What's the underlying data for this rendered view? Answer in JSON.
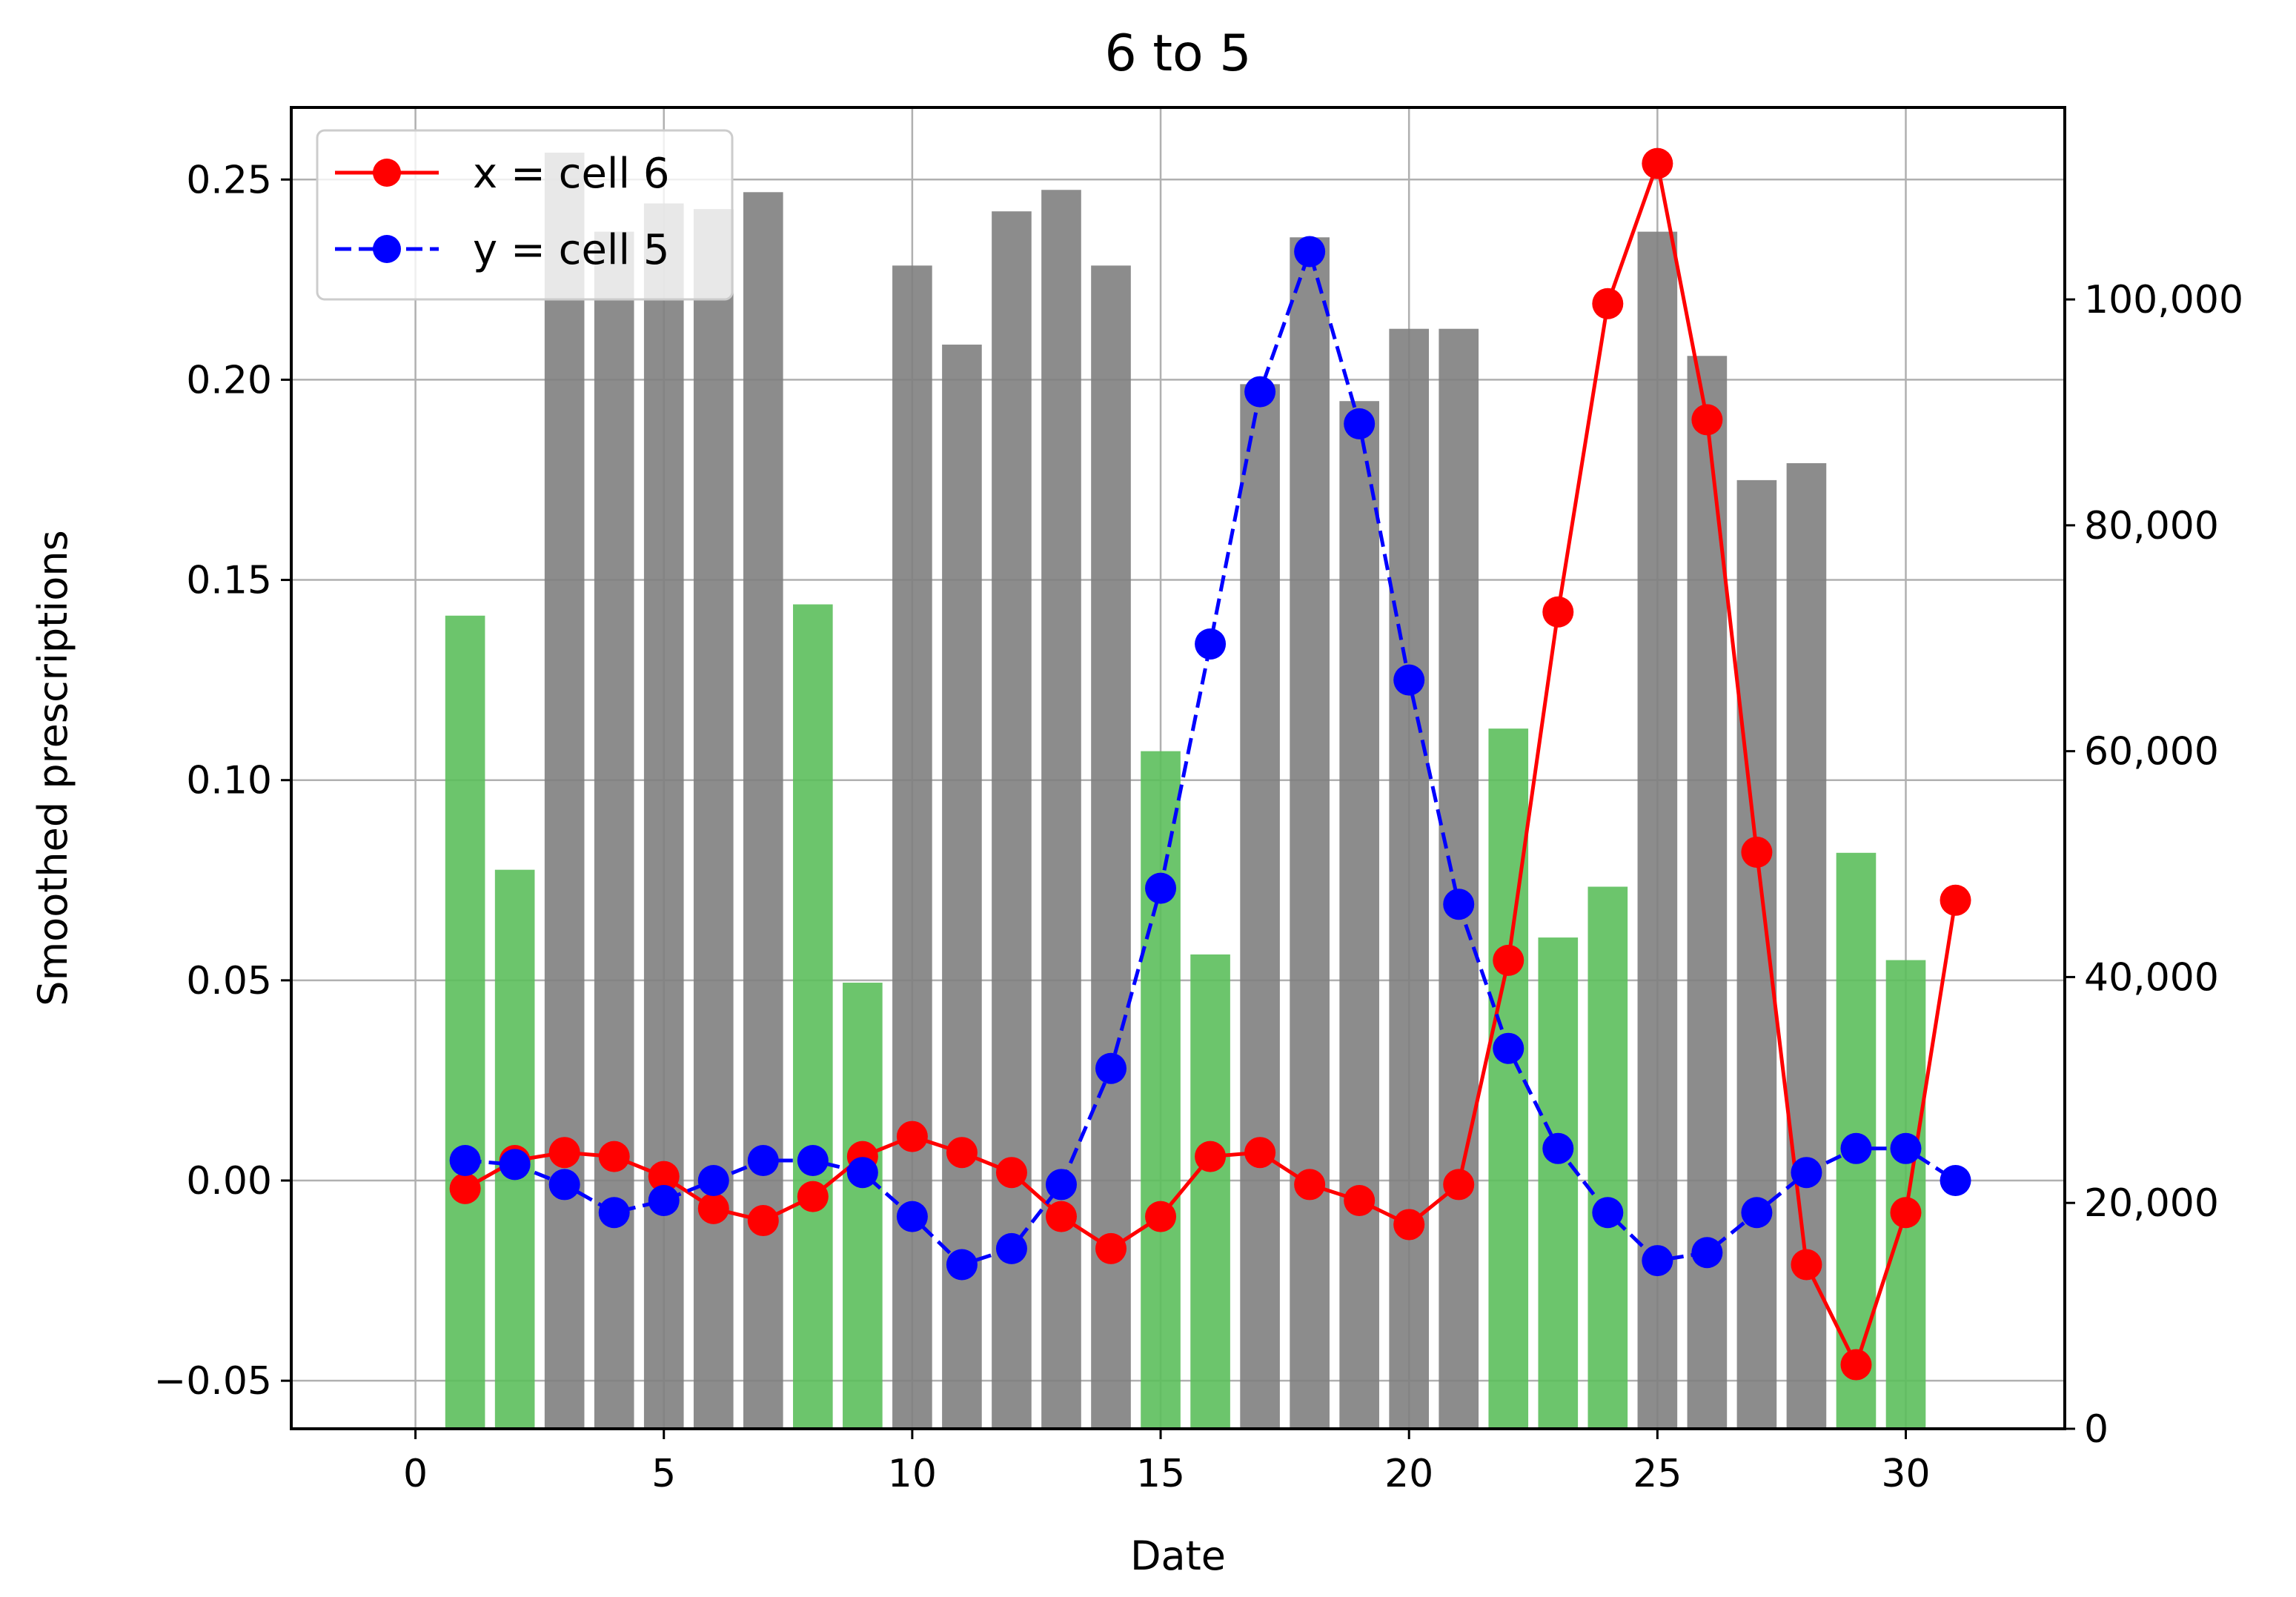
{
  "chart_data": {
    "type": "bar",
    "title": "6 to 5",
    "xlabel": "Date",
    "ylabel": "Smoothed prescriptions",
    "y2label": "",
    "xlim": [
      -2.5,
      33.2
    ],
    "ylim": [
      -0.062,
      0.268
    ],
    "y2lim": [
      0,
      117000
    ],
    "x_ticks": [
      0,
      5,
      10,
      15,
      20,
      25,
      30
    ],
    "y_ticks": [
      -0.05,
      0.0,
      0.05,
      0.1,
      0.15,
      0.2,
      0.25
    ],
    "y_tick_labels": [
      "−0.05",
      "0.00",
      "0.05",
      "0.10",
      "0.15",
      "0.20",
      "0.25"
    ],
    "y2_ticks": [
      0,
      20000,
      40000,
      60000,
      80000,
      100000
    ],
    "y2_tick_labels": [
      "0",
      "20,000",
      "40,000",
      "60,000",
      "80,000",
      "100,000"
    ],
    "grid": true,
    "legend_position": "top-left",
    "series": [
      {
        "name": "x = cell 6",
        "type": "line",
        "axis": "left",
        "color": "#ff0000",
        "linestyle": "solid",
        "marker": "circle",
        "x": [
          1,
          2,
          3,
          4,
          5,
          6,
          7,
          8,
          9,
          10,
          11,
          12,
          13,
          14,
          15,
          16,
          17,
          18,
          19,
          20,
          21,
          22,
          23,
          24,
          25,
          26,
          27,
          28,
          29,
          30,
          31
        ],
        "y": [
          -0.002,
          0.005,
          0.007,
          0.006,
          0.001,
          -0.007,
          -0.01,
          -0.004,
          0.006,
          0.011,
          0.007,
          0.002,
          -0.009,
          -0.017,
          -0.009,
          0.006,
          0.007,
          -0.001,
          -0.005,
          -0.011,
          -0.001,
          0.055,
          0.142,
          0.219,
          0.254,
          0.19,
          0.082,
          -0.021,
          -0.046,
          -0.008,
          0.07
        ]
      },
      {
        "name": "y = cell 5",
        "type": "line",
        "axis": "left",
        "color": "#0000ff",
        "linestyle": "dashed",
        "marker": "circle",
        "x": [
          1,
          2,
          3,
          4,
          5,
          6,
          7,
          8,
          9,
          10,
          11,
          12,
          13,
          14,
          15,
          16,
          17,
          18,
          19,
          20,
          21,
          22,
          23,
          24,
          25,
          26,
          27,
          28,
          29,
          30,
          31
        ],
        "y": [
          0.005,
          0.004,
          -0.001,
          -0.008,
          -0.005,
          0.0,
          0.005,
          0.005,
          0.002,
          -0.009,
          -0.021,
          -0.017,
          -0.001,
          0.028,
          0.073,
          0.134,
          0.197,
          0.232,
          0.189,
          0.125,
          0.069,
          0.033,
          0.008,
          -0.008,
          -0.02,
          -0.018,
          -0.008,
          0.002,
          0.008,
          0.008,
          0.0
        ]
      },
      {
        "name": "",
        "type": "bar",
        "axis": "right",
        "color": "#808080",
        "x": [
          3,
          4,
          5,
          6,
          7,
          10,
          11,
          12,
          13,
          14,
          17,
          18,
          19,
          20,
          21,
          25,
          26,
          27,
          28
        ],
        "values": [
          113000,
          106000,
          108500,
          108000,
          109500,
          103000,
          96000,
          107800,
          109700,
          103000,
          92500,
          105500,
          91000,
          97400,
          97400,
          106000,
          95000,
          84000,
          85500
        ]
      },
      {
        "name": "",
        "type": "bar",
        "axis": "right",
        "color": "#5cbf5c",
        "x": [
          1,
          2,
          8,
          9,
          15,
          16,
          22,
          23,
          24,
          29,
          30
        ],
        "values": [
          72000,
          49500,
          73000,
          39500,
          60000,
          42000,
          62000,
          43500,
          48000,
          51000,
          41500
        ]
      }
    ]
  }
}
